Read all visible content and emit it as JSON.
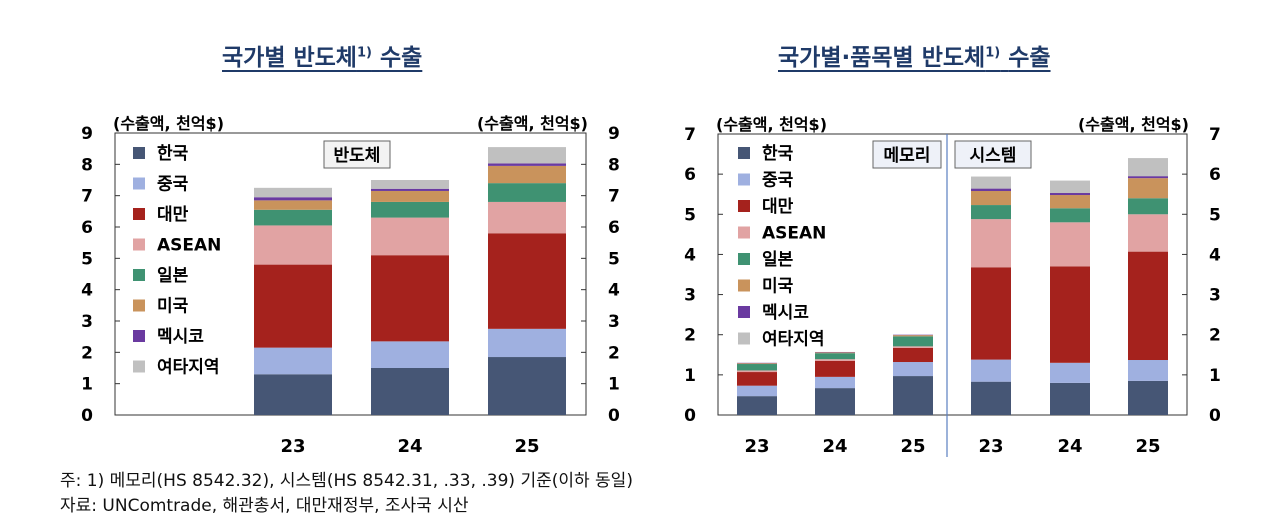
{
  "chart_data": [
    {
      "type": "bar",
      "stacked": true,
      "title": "국가별 반도체",
      "title_sup": "1)",
      "title_suffix": "수출",
      "ylabel_left": "(수출액, 천억$)",
      "ylabel_right": "(수출액, 천억$)",
      "ylim": [
        0,
        9
      ],
      "yticks": [
        "0",
        "1",
        "2",
        "3",
        "4",
        "5",
        "6",
        "7",
        "8",
        "9"
      ],
      "categories": [
        "23",
        "24",
        "25"
      ],
      "box_label": "반도체",
      "series": [
        {
          "name": "한국",
          "color": "#465675",
          "values": [
            1.3,
            1.5,
            1.85
          ]
        },
        {
          "name": "중국",
          "color": "#9fb0e0",
          "values": [
            0.85,
            0.85,
            0.9
          ]
        },
        {
          "name": "대만",
          "color": "#a5221d",
          "values": [
            2.65,
            2.75,
            3.05
          ]
        },
        {
          "name": "ASEAN",
          "color": "#e1a3a3",
          "values": [
            1.25,
            1.2,
            1.0
          ]
        },
        {
          "name": "일본",
          "color": "#3f9272",
          "values": [
            0.5,
            0.5,
            0.6
          ]
        },
        {
          "name": "미국",
          "color": "#c9935c",
          "values": [
            0.3,
            0.35,
            0.55
          ]
        },
        {
          "name": "멕시코",
          "color": "#6a3aa0",
          "values": [
            0.1,
            0.07,
            0.08
          ]
        },
        {
          "name": "여타지역",
          "color": "#c0c0c0",
          "values": [
            0.3,
            0.28,
            0.52
          ]
        }
      ]
    },
    {
      "type": "bar",
      "stacked": true,
      "title": "국가별·품목별 반도체",
      "title_sup": "1)",
      "title_suffix": "수출",
      "ylabel_left": "(수출액, 천억$)",
      "ylabel_right": "(수출액, 천억$)",
      "ylim": [
        0,
        7
      ],
      "yticks": [
        "0",
        "1",
        "2",
        "3",
        "4",
        "5",
        "6",
        "7"
      ],
      "groups": [
        {
          "label": "메모리",
          "categories": [
            "23",
            "24",
            "25"
          ]
        },
        {
          "label": "시스템",
          "categories": [
            "23",
            "24",
            "25"
          ]
        }
      ],
      "series": [
        {
          "name": "한국",
          "color": "#465675",
          "values": [
            0.47,
            0.67,
            0.97,
            0.83,
            0.8,
            0.85
          ]
        },
        {
          "name": "중국",
          "color": "#9fb0e0",
          "values": [
            0.26,
            0.28,
            0.35,
            0.55,
            0.5,
            0.52
          ]
        },
        {
          "name": "대만",
          "color": "#a5221d",
          "values": [
            0.34,
            0.4,
            0.35,
            2.3,
            2.4,
            2.7
          ]
        },
        {
          "name": "ASEAN",
          "color": "#e1a3a3",
          "values": [
            0.04,
            0.04,
            0.04,
            1.2,
            1.1,
            0.93
          ]
        },
        {
          "name": "일본",
          "color": "#3f9272",
          "values": [
            0.16,
            0.15,
            0.25,
            0.35,
            0.35,
            0.4
          ]
        },
        {
          "name": "미국",
          "color": "#c9935c",
          "values": [
            0.02,
            0.02,
            0.03,
            0.35,
            0.33,
            0.5
          ]
        },
        {
          "name": "멕시코",
          "color": "#6a3aa0",
          "values": [
            0.01,
            0.01,
            0.01,
            0.06,
            0.05,
            0.05
          ]
        },
        {
          "name": "여타지역",
          "color": "#c0c0c0",
          "values": [
            0.0,
            0.0,
            0.0,
            0.3,
            0.31,
            0.45
          ]
        }
      ]
    }
  ],
  "notes": {
    "line1": "주: 1) 메모리(HS 8542.32), 시스템(HS 8542.31, .33, .39) 기준(이하 동일)",
    "line2": "자료: UNComtrade, 해관총서, 대만재정부, 조사국 시산"
  }
}
